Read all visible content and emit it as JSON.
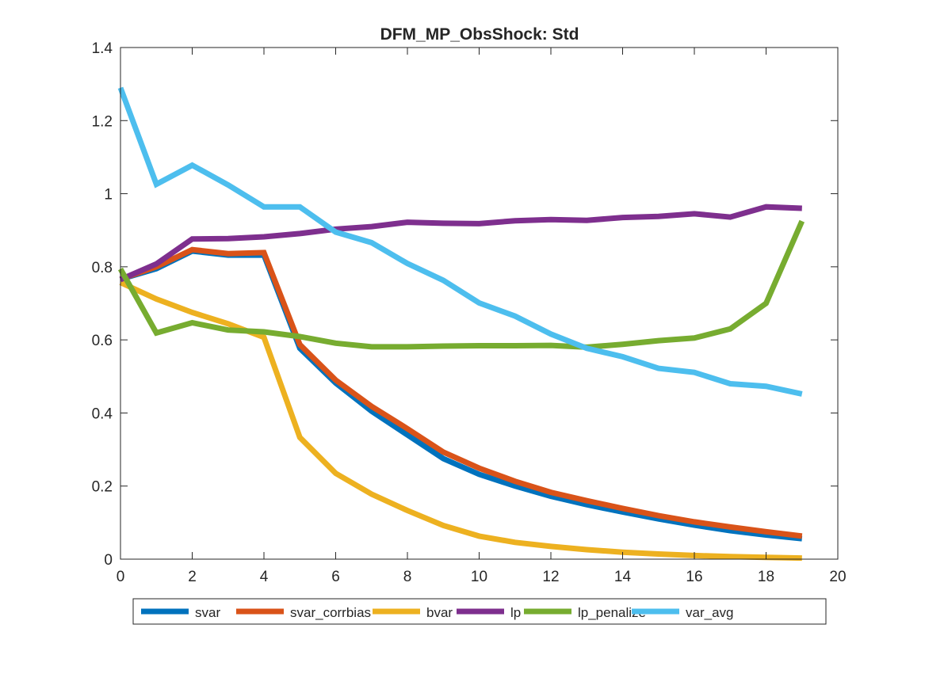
{
  "chart_data": {
    "type": "line",
    "title": "DFM_MP_ObsShock: Std",
    "xlabel": "",
    "ylabel": "",
    "xlim": [
      0,
      20
    ],
    "ylim": [
      0,
      1.4
    ],
    "xticks": [
      0,
      2,
      4,
      6,
      8,
      10,
      12,
      14,
      16,
      18,
      20
    ],
    "yticks": [
      0,
      0.2,
      0.4,
      0.6,
      0.8,
      1,
      1.2,
      1.4
    ],
    "xtick_labels": [
      "0",
      "2",
      "4",
      "6",
      "8",
      "10",
      "12",
      "14",
      "16",
      "18",
      "20"
    ],
    "ytick_labels": [
      "0",
      "0.2",
      "0.4",
      "0.6",
      "0.8",
      "1",
      "1.2",
      "1.4"
    ],
    "grid": false,
    "legend_position": "bottom-outside",
    "x": [
      0,
      1,
      2,
      3,
      4,
      5,
      6,
      7,
      8,
      9,
      10,
      11,
      12,
      13,
      14,
      15,
      16,
      17,
      18,
      19
    ],
    "series": [
      {
        "name": "svar",
        "color": "#0072BD",
        "values": [
          0.766,
          0.795,
          0.843,
          0.832,
          0.832,
          0.577,
          0.482,
          0.405,
          0.34,
          0.275,
          0.232,
          0.2,
          0.172,
          0.149,
          0.129,
          0.11,
          0.093,
          0.078,
          0.066,
          0.056
        ]
      },
      {
        "name": "svar_corrbias",
        "color": "#D95319",
        "values": [
          0.766,
          0.8,
          0.847,
          0.836,
          0.839,
          0.587,
          0.49,
          0.418,
          0.357,
          0.293,
          0.249,
          0.213,
          0.183,
          0.16,
          0.139,
          0.119,
          0.102,
          0.088,
          0.075,
          0.063
        ]
      },
      {
        "name": "bvar",
        "color": "#EDB120",
        "values": [
          0.757,
          0.712,
          0.675,
          0.644,
          0.607,
          0.333,
          0.235,
          0.178,
          0.133,
          0.092,
          0.063,
          0.046,
          0.035,
          0.026,
          0.019,
          0.014,
          0.01,
          0.007,
          0.005,
          0.003
        ]
      },
      {
        "name": "lp",
        "color": "#7E2F8E",
        "values": [
          0.765,
          0.808,
          0.876,
          0.877,
          0.882,
          0.891,
          0.903,
          0.91,
          0.922,
          0.919,
          0.918,
          0.926,
          0.929,
          0.927,
          0.935,
          0.938,
          0.945,
          0.936,
          0.964,
          0.96
        ]
      },
      {
        "name": "lp_penalize",
        "color": "#77AC30",
        "values": [
          0.794,
          0.619,
          0.647,
          0.627,
          0.622,
          0.609,
          0.591,
          0.581,
          0.581,
          0.583,
          0.584,
          0.584,
          0.585,
          0.58,
          0.588,
          0.598,
          0.605,
          0.63,
          0.7,
          0.925
        ]
      },
      {
        "name": "var_avg",
        "color": "#4DBEEE",
        "values": [
          1.29,
          1.026,
          1.078,
          1.024,
          0.964,
          0.964,
          0.895,
          0.866,
          0.809,
          0.763,
          0.701,
          0.665,
          0.616,
          0.577,
          0.554,
          0.522,
          0.511,
          0.48,
          0.473,
          0.452
        ]
      }
    ]
  }
}
